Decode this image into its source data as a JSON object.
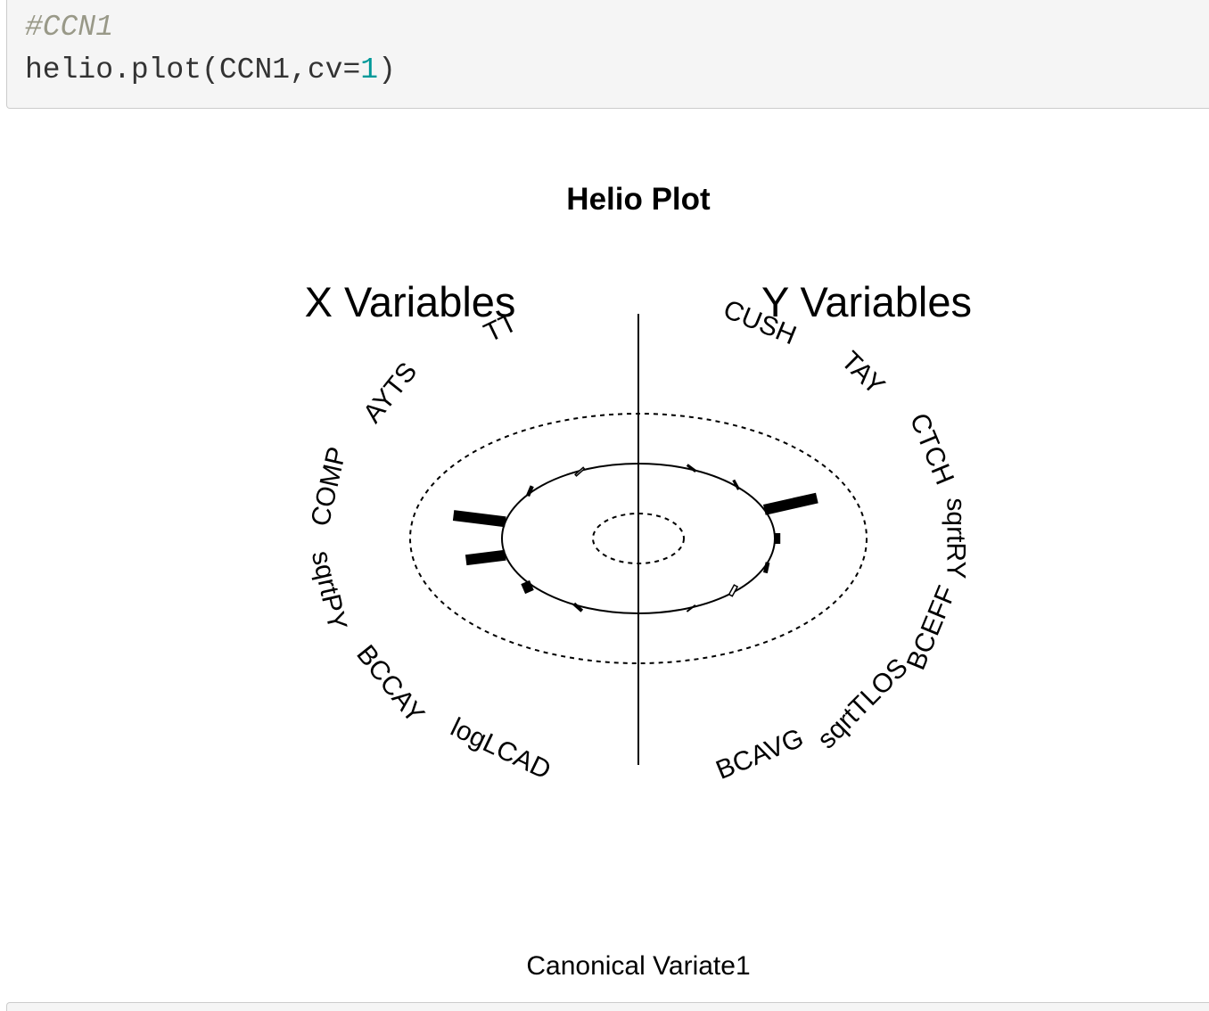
{
  "code": {
    "comment": "#CCN1",
    "call_prefix": "helio.plot(CCN1,cv=",
    "call_number": "1",
    "call_suffix": ")"
  },
  "chart_data": {
    "type": "helio",
    "title": "Helio Plot",
    "xlabel": "Canonical Variate1",
    "x_group_label": "X Variables",
    "y_group_label": "Y Variables",
    "scale_max": 1,
    "x_variables": [
      {
        "name": "TT",
        "value": -0.03
      },
      {
        "name": "AYTS",
        "value": 0.05
      },
      {
        "name": "COMP",
        "value": 0.58
      },
      {
        "name": "sqrtPY",
        "value": 0.44
      },
      {
        "name": "BCCAY",
        "value": 0.12
      },
      {
        "name": "logLCAD",
        "value": 0.06
      }
    ],
    "y_variables": [
      {
        "name": "CUSH",
        "value": 0.05
      },
      {
        "name": "TAY",
        "value": 0.04
      },
      {
        "name": "CTCH",
        "value": 0.62
      },
      {
        "name": "sqrtRY",
        "value": 0.06
      },
      {
        "name": "BCEFF",
        "value": 0.05
      },
      {
        "name": "sqrtTLOS",
        "value": -0.05
      },
      {
        "name": "BCAVG",
        "value": 0.03
      }
    ]
  }
}
